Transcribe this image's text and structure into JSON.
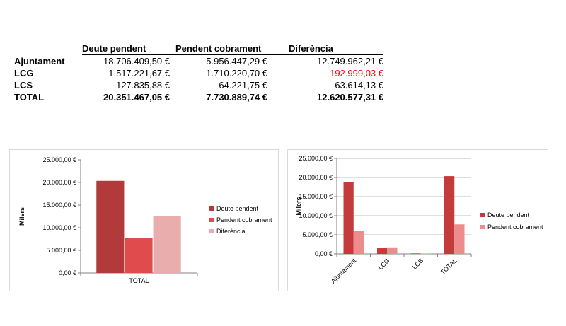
{
  "table": {
    "headers": [
      "",
      "Deute pendent",
      "Pendent cobrament",
      "Diferència"
    ],
    "rows": [
      {
        "label": "Ajuntament",
        "deute": "18.706.409,50 €",
        "cobrament": "5.956.447,29 €",
        "diferencia": "12.749.962,21 €"
      },
      {
        "label": "LCG",
        "deute": "1.517.221,67 €",
        "cobrament": "1.710.220,70 €",
        "diferencia": "-192.999,03 €"
      },
      {
        "label": "LCS",
        "deute": "127.835,88 €",
        "cobrament": "64.221,75 €",
        "diferencia": "63.614,13 €"
      },
      {
        "label": "TOTAL",
        "deute": "20.351.467,05 €",
        "cobrament": "7.730.889,74 €",
        "diferencia": "12.620.577,31 €"
      }
    ],
    "negative_color": "#ff0000"
  },
  "chart_data": [
    {
      "type": "bar",
      "title": "",
      "xlabel": "",
      "ylabel": "Milers",
      "ylim": [
        0,
        25000
      ],
      "yticks": [
        0,
        5000,
        10000,
        15000,
        20000,
        25000
      ],
      "ytick_labels": [
        "0,00 €",
        "5.000,00 €",
        "10.000,00 €",
        "15.000,00 €",
        "20.000,00 €",
        "25.000,00 €"
      ],
      "categories": [
        "TOTAL"
      ],
      "series": [
        {
          "name": "Deute pendent",
          "values": [
            20351.47
          ],
          "color": "#b23a3a"
        },
        {
          "name": "Pendent cobrament",
          "values": [
            7730.89
          ],
          "color": "#e04b4b"
        },
        {
          "name": "Diferència",
          "values": [
            12620.58
          ],
          "color": "#e9adad"
        }
      ],
      "legend_position": "right",
      "grid": false
    },
    {
      "type": "bar",
      "title": "",
      "xlabel": "",
      "ylabel": "Milers",
      "ylim": [
        0,
        25000
      ],
      "yticks": [
        0,
        5000,
        10000,
        15000,
        20000,
        25000
      ],
      "ytick_labels": [
        "0,00 €",
        "5.000,00 €",
        "10.000,00 €",
        "15.000,00 €",
        "20.000,00 €",
        "25.000,00 €"
      ],
      "categories": [
        "Ajuntament",
        "LCG",
        "LCS",
        "TOTAL"
      ],
      "series": [
        {
          "name": "Deute pendent",
          "values": [
            18706.41,
            1517.22,
            127.84,
            20351.47
          ],
          "color": "#c43b3b"
        },
        {
          "name": "Pendent cobrament",
          "values": [
            5956.45,
            1710.22,
            64.22,
            7730.89
          ],
          "color": "#ec8c8c"
        }
      ],
      "legend_position": "right",
      "grid": true
    }
  ]
}
